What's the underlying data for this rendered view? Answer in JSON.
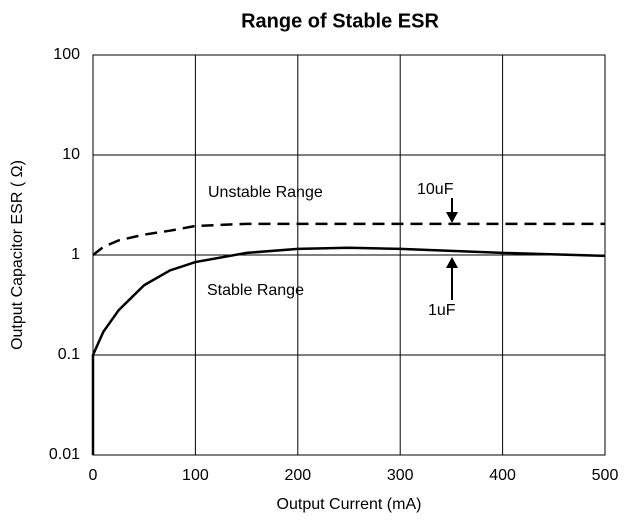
{
  "chart_data": {
    "type": "line",
    "title": "Range of Stable ESR",
    "xlabel": "Output Current (mA)",
    "ylabel": "Output Capacitor ESR ( Ω)",
    "xlim": [
      0,
      500
    ],
    "xticks": [
      0,
      100,
      200,
      300,
      400,
      500
    ],
    "ylim": [
      0.01,
      100
    ],
    "yticks": [
      0.01,
      0.1,
      1,
      10,
      100
    ],
    "log_y": true,
    "grid": true,
    "annotations": [
      "Unstable Range",
      "Stable Range"
    ],
    "series": [
      {
        "name": "10uF",
        "color": "#000000",
        "dashed": true,
        "x": [
          0,
          10,
          25,
          50,
          75,
          100,
          150,
          200,
          300,
          400,
          500
        ],
        "values": [
          1,
          1.2,
          1.4,
          1.6,
          1.75,
          1.95,
          2.05,
          2.05,
          2.05,
          2.05,
          2.05
        ]
      },
      {
        "name": "1uF",
        "color": "#000000",
        "dashed": false,
        "x": [
          0,
          0,
          10,
          25,
          50,
          75,
          100,
          150,
          200,
          250,
          300,
          400,
          500
        ],
        "values": [
          0.01,
          0.1,
          0.17,
          0.28,
          0.5,
          0.7,
          0.85,
          1.05,
          1.15,
          1.18,
          1.15,
          1.05,
          0.98
        ]
      }
    ]
  }
}
